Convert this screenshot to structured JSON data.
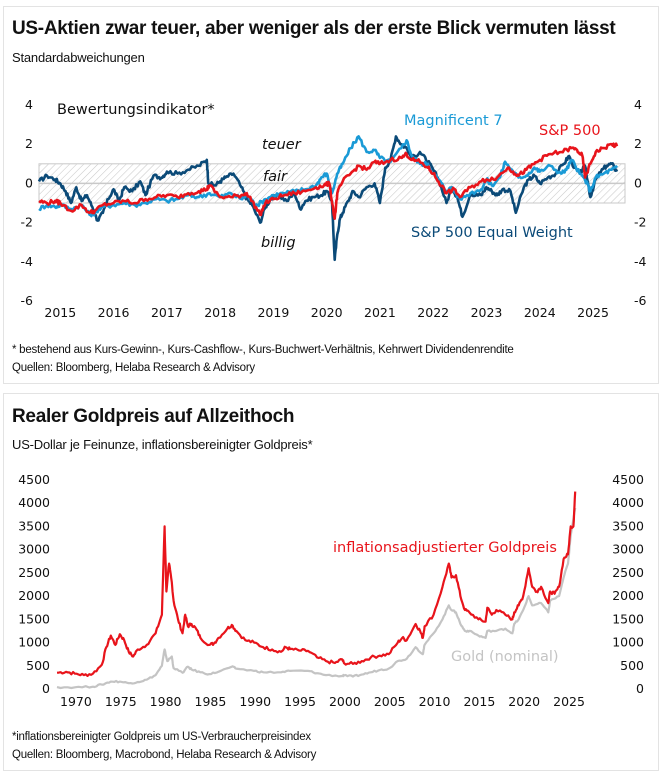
{
  "panel1": {
    "title": "US-Aktien zwar teuer, aber weniger als der erste Blick vermuten lässt",
    "subtitle": "Standardabweichungen",
    "footnote": "* bestehend aus Kurs-Gewinn-, Kurs-Cashflow-, Kurs-Buchwert-Verhältnis, Kehrwert Dividendenrendite",
    "source": "Quellen: Bloomberg, Helaba Research & Advisory"
  },
  "panel2": {
    "title": "Realer Goldpreis auf Allzeithoch",
    "subtitle": "US-Dollar je Feinunze, inflationsbereinigter Goldpreis*",
    "footnote": "*inflationsbereinigter Goldpreis um US-Verbraucherpreisindex",
    "source": "Quellen: Bloomberg, Macrobond, Helaba Research & Advisory"
  },
  "chart_data": [
    {
      "type": "line",
      "title": "Bewertungsindikator*",
      "xlabel": "",
      "ylabel": "Standardabweichungen",
      "xlim": [
        2014.6,
        2025.6
      ],
      "ylim": [
        -6,
        4
      ],
      "yticks": [
        -6,
        -4,
        -2,
        0,
        2,
        4
      ],
      "ytick_labels": [
        "-6",
        "-4",
        "-2",
        "0",
        "2",
        "4"
      ],
      "xtick_labels": [
        "2015",
        "2016",
        "2017",
        "2018",
        "2019",
        "2020",
        "2021",
        "2022",
        "2023",
        "2024",
        "2025"
      ],
      "xticks": [
        2015,
        2016,
        2017,
        2018,
        2019,
        2020,
        2021,
        2022,
        2023,
        2024,
        2025
      ],
      "axes": "left-and-right",
      "grid": false,
      "fair_band": {
        "from": -1,
        "to": 1,
        "label_upper": "teuer",
        "label_mid": "fair",
        "label_lower": "billig"
      },
      "series": [
        {
          "name": "S&P 500 Equal Weight",
          "color": "#0b4a78",
          "x": [
            2014.6,
            2014.75,
            2014.9,
            2015.0,
            2015.1,
            2015.2,
            2015.3,
            2015.4,
            2015.5,
            2015.6,
            2015.7,
            2015.8,
            2015.9,
            2016.0,
            2016.1,
            2016.2,
            2016.35,
            2016.5,
            2016.6,
            2016.75,
            2016.9,
            2017.0,
            2017.2,
            2017.4,
            2017.6,
            2017.75,
            2017.78,
            2017.9,
            2018.0,
            2018.1,
            2018.25,
            2018.4,
            2018.5,
            2018.6,
            2018.75,
            2018.85,
            2018.95,
            2019.1,
            2019.25,
            2019.4,
            2019.5,
            2019.6,
            2019.75,
            2019.9,
            2020.0,
            2020.1,
            2020.15,
            2020.2,
            2020.25,
            2020.3,
            2020.4,
            2020.5,
            2020.6,
            2020.75,
            2020.9,
            2021.0,
            2021.1,
            2021.2,
            2021.3,
            2021.4,
            2021.5,
            2021.6,
            2021.75,
            2021.9,
            2022.0,
            2022.1,
            2022.25,
            2022.35,
            2022.45,
            2022.55,
            2022.7,
            2022.8,
            2022.9,
            2023.0,
            2023.1,
            2023.2,
            2023.3,
            2023.45,
            2023.55,
            2023.7,
            2023.8,
            2023.9,
            2024.0,
            2024.15,
            2024.3,
            2024.45,
            2024.55,
            2024.65,
            2024.75,
            2024.85,
            2024.95,
            2025.05,
            2025.15,
            2025.25,
            2025.35,
            2025.45
          ],
          "y": [
            0.1,
            0.4,
            0.2,
            0.0,
            -0.4,
            -1.0,
            -0.2,
            -0.9,
            -0.6,
            -1.2,
            -1.9,
            -1.5,
            -0.8,
            -0.3,
            -0.9,
            -0.2,
            -0.4,
            0.1,
            -0.6,
            0.4,
            0.3,
            0.6,
            0.5,
            0.7,
            0.9,
            1.2,
            0.0,
            -0.1,
            0.1,
            0.3,
            0.5,
            -0.2,
            -0.8,
            -1.1,
            -2.0,
            -1.2,
            -0.8,
            -0.6,
            -0.9,
            -0.5,
            -1.3,
            -0.9,
            -0.7,
            -0.6,
            -0.4,
            -0.9,
            -3.9,
            -2.6,
            -1.8,
            -1.5,
            -0.9,
            -0.4,
            -0.7,
            -0.2,
            0.0,
            -1.0,
            0.8,
            1.2,
            2.4,
            2.0,
            1.8,
            1.3,
            1.6,
            1.1,
            0.7,
            0.2,
            -1.0,
            -0.2,
            -0.7,
            -1.7,
            -0.5,
            -0.6,
            -0.6,
            -0.2,
            -0.4,
            -0.6,
            -0.3,
            -0.4,
            -1.5,
            -0.2,
            0.2,
            0.4,
            0.0,
            0.3,
            0.5,
            1.0,
            1.4,
            0.8,
            0.5,
            0.9,
            -0.7,
            0.2,
            0.6,
            0.9,
            1.0,
            0.6
          ]
        },
        {
          "name": "Magnificent 7",
          "color": "#1a9ad6",
          "x": [
            2014.6,
            2014.75,
            2014.9,
            2015.0,
            2015.2,
            2015.4,
            2015.55,
            2015.65,
            2015.8,
            2016.0,
            2016.2,
            2016.4,
            2016.6,
            2016.8,
            2017.0,
            2017.2,
            2017.4,
            2017.6,
            2017.8,
            2018.0,
            2018.2,
            2018.4,
            2018.5,
            2018.6,
            2018.7,
            2018.85,
            2019.0,
            2019.2,
            2019.4,
            2019.6,
            2019.8,
            2019.9,
            2020.0,
            2020.1,
            2020.2,
            2020.3,
            2020.45,
            2020.6,
            2020.75,
            2020.9,
            2021.0,
            2021.2,
            2021.4,
            2021.5,
            2021.6,
            2021.75,
            2021.9,
            2022.0,
            2022.1,
            2022.25,
            2022.35,
            2022.5,
            2022.7,
            2022.9,
            2023.0,
            2023.1,
            2023.25,
            2023.35,
            2023.5,
            2023.6,
            2023.75,
            2023.9,
            2024.0,
            2024.2,
            2024.4,
            2024.5,
            2024.6,
            2024.75,
            2024.85,
            2024.95,
            2025.05,
            2025.2,
            2025.35,
            2025.45
          ],
          "y": [
            -1.3,
            -1.1,
            -1.2,
            -1.1,
            -1.3,
            -1.1,
            -1.6,
            -1.5,
            -1.2,
            -1.1,
            -1.0,
            -1.1,
            -1.0,
            -0.8,
            -0.9,
            -0.8,
            -0.6,
            -0.7,
            -0.5,
            -0.7,
            -0.5,
            -0.8,
            -0.6,
            -0.9,
            -1.1,
            -0.8,
            -0.6,
            -0.5,
            -0.4,
            -0.3,
            -0.1,
            0.3,
            0.5,
            -0.5,
            0.5,
            1.0,
            1.8,
            2.4,
            1.6,
            1.7,
            1.3,
            1.1,
            1.8,
            2.2,
            1.4,
            1.0,
            1.0,
            0.5,
            0.2,
            -0.4,
            -0.2,
            -0.8,
            -0.5,
            -0.3,
            0.2,
            -0.1,
            0.3,
            1.1,
            0.6,
            0.3,
            0.4,
            0.8,
            0.6,
            0.9,
            0.5,
            0.7,
            1.2,
            0.5,
            0.2,
            -0.4,
            0.3,
            0.5,
            0.7,
            0.8
          ]
        },
        {
          "name": "S&P 500",
          "color": "#e8141b",
          "x": [
            2014.6,
            2014.75,
            2014.9,
            2015.0,
            2015.2,
            2015.4,
            2015.55,
            2015.65,
            2015.8,
            2016.0,
            2016.2,
            2016.4,
            2016.6,
            2016.8,
            2017.0,
            2017.2,
            2017.4,
            2017.6,
            2017.75,
            2017.8,
            2018.0,
            2018.2,
            2018.4,
            2018.5,
            2018.6,
            2018.75,
            2018.85,
            2019.0,
            2019.2,
            2019.4,
            2019.6,
            2019.8,
            2019.95,
            2020.05,
            2020.15,
            2020.2,
            2020.3,
            2020.45,
            2020.6,
            2020.75,
            2020.9,
            2021.0,
            2021.2,
            2021.4,
            2021.5,
            2021.6,
            2021.75,
            2021.9,
            2022.0,
            2022.1,
            2022.25,
            2022.4,
            2022.5,
            2022.7,
            2022.9,
            2023.0,
            2023.2,
            2023.4,
            2023.5,
            2023.6,
            2023.75,
            2023.9,
            2024.0,
            2024.2,
            2024.4,
            2024.6,
            2024.7,
            2024.8,
            2024.85,
            2024.95,
            2025.05,
            2025.2,
            2025.35,
            2025.45
          ],
          "y": [
            -0.9,
            -1.0,
            -0.9,
            -1.0,
            -1.4,
            -1.1,
            -1.5,
            -1.4,
            -1.1,
            -1.0,
            -0.9,
            -1.0,
            -0.8,
            -0.7,
            -0.6,
            -0.7,
            -0.5,
            -0.4,
            -0.3,
            -0.1,
            -0.7,
            -0.7,
            -0.6,
            -0.5,
            -0.9,
            -1.6,
            -1.0,
            -0.8,
            -0.6,
            -0.5,
            -0.4,
            -0.2,
            -0.1,
            0.0,
            -1.8,
            -0.5,
            0.1,
            0.5,
            0.9,
            0.7,
            1.1,
            1.0,
            1.2,
            1.3,
            1.5,
            1.2,
            1.1,
            0.8,
            0.5,
            0.1,
            -0.5,
            -0.3,
            -0.7,
            -0.2,
            0.1,
            0.2,
            0.3,
            0.8,
            0.6,
            0.4,
            0.7,
            1.0,
            1.2,
            1.5,
            1.6,
            1.8,
            1.7,
            1.4,
            0.3,
            1.0,
            1.6,
            1.8,
            2.0,
            1.9
          ]
        }
      ],
      "legend": "inline-labels"
    },
    {
      "type": "line",
      "title": "Realer Goldpreis auf Allzeithoch",
      "xlabel": "",
      "ylabel": "US-Dollar je Feinunze",
      "xlim": [
        1968,
        2026
      ],
      "ylim": [
        0,
        4500
      ],
      "yticks": [
        0,
        500,
        1000,
        1500,
        2000,
        2500,
        3000,
        3500,
        4000,
        4500
      ],
      "ytick_labels": [
        "0",
        "500",
        "1000",
        "1500",
        "2000",
        "2500",
        "3000",
        "3500",
        "4000",
        "4500"
      ],
      "xticks": [
        1970,
        1975,
        1980,
        1985,
        1990,
        1995,
        2000,
        2005,
        2010,
        2015,
        2020,
        2025
      ],
      "xtick_labels": [
        "1970",
        "1975",
        "1980",
        "1985",
        "1990",
        "1995",
        "2000",
        "2005",
        "2010",
        "2015",
        "2020",
        "2025"
      ],
      "axes": "left-and-right",
      "grid": false,
      "series": [
        {
          "name": "inflationsadjustierter Goldpreis",
          "color": "#e8141b",
          "x": [
            1968,
            1969,
            1970,
            1971,
            1972,
            1973,
            1973.5,
            1974,
            1974.5,
            1975,
            1975.5,
            1976,
            1976.5,
            1977,
            1978,
            1979,
            1979.7,
            1980.0,
            1980.2,
            1980.5,
            1980.8,
            1981,
            1981.5,
            1982,
            1982.3,
            1982.6,
            1983,
            1983.5,
            1984,
            1985,
            1985.5,
            1986,
            1987,
            1987.5,
            1988,
            1989,
            1990,
            1991,
            1992,
            1993,
            1993.5,
            1994,
            1995,
            1996,
            1997,
            1998,
            1999,
            1999.8,
            2000,
            2001,
            2002,
            2003,
            2004,
            2005,
            2006,
            2006.5,
            2007,
            2008,
            2008.5,
            2008.8,
            2009,
            2010,
            2011,
            2011.7,
            2012,
            2012.5,
            2013,
            2013.5,
            2014,
            2015,
            2015.8,
            2016,
            2016.5,
            2017,
            2018,
            2018.8,
            2019,
            2019.5,
            2020,
            2020.6,
            2021,
            2021.5,
            2022,
            2022.8,
            2023,
            2023.5,
            2024,
            2024.5,
            2025,
            2025.3,
            2025.6,
            2025.8
          ],
          "y": [
            350,
            370,
            330,
            300,
            330,
            520,
            900,
            1150,
            950,
            1180,
            1050,
            800,
            700,
            850,
            950,
            1200,
            1600,
            3500,
            2100,
            2700,
            2300,
            1900,
            1500,
            1200,
            1600,
            1350,
            1400,
            1300,
            1100,
            950,
            980,
            1100,
            1300,
            1380,
            1250,
            1050,
            1000,
            900,
            850,
            800,
            900,
            860,
            830,
            820,
            680,
            600,
            560,
            640,
            560,
            540,
            600,
            680,
            720,
            750,
            1000,
            1100,
            1050,
            1400,
            1250,
            1100,
            1350,
            1600,
            2200,
            2700,
            2400,
            2450,
            2000,
            1700,
            1650,
            1500,
            1450,
            1750,
            1600,
            1700,
            1600,
            1500,
            1650,
            1800,
            2000,
            2600,
            2200,
            2100,
            2200,
            1850,
            2100,
            2050,
            2200,
            2800,
            2900,
            3500,
            3500,
            4250
          ]
        },
        {
          "name": "Gold (nominal)",
          "color": "#c4c4c4",
          "x": [
            1968,
            1970,
            1972,
            1973,
            1974,
            1975,
            1976,
            1977,
            1978,
            1979,
            1979.7,
            1980.0,
            1980.3,
            1980.8,
            1981,
            1982,
            1982.6,
            1983,
            1984,
            1985,
            1986,
            1987.5,
            1988,
            1990,
            1991,
            1993,
            1994,
            1996,
            1997,
            1998,
            1999.8,
            2000,
            2001,
            2002,
            2003,
            2004,
            2005,
            2006,
            2007,
            2008,
            2008.8,
            2009,
            2010,
            2011,
            2011.7,
            2012,
            2012.5,
            2013,
            2013.5,
            2014,
            2015,
            2015.8,
            2016,
            2017,
            2018,
            2018.8,
            2019,
            2019.5,
            2020,
            2020.6,
            2021,
            2022,
            2022.8,
            2023,
            2024,
            2024.5,
            2025,
            2025.3,
            2025.8
          ],
          "y": [
            40,
            36,
            50,
            95,
            160,
            160,
            125,
            150,
            200,
            300,
            500,
            850,
            600,
            700,
            450,
            350,
            480,
            420,
            360,
            320,
            370,
            480,
            440,
            390,
            360,
            360,
            390,
            390,
            340,
            300,
            280,
            290,
            270,
            310,
            360,
            410,
            440,
            600,
            650,
            900,
            750,
            950,
            1200,
            1500,
            1800,
            1700,
            1650,
            1400,
            1250,
            1250,
            1150,
            1100,
            1250,
            1250,
            1300,
            1200,
            1400,
            1500,
            1700,
            2000,
            1800,
            1850,
            1650,
            1900,
            2000,
            2400,
            2700,
            3300,
            3900
          ]
        }
      ],
      "legend": "inline-labels"
    }
  ]
}
